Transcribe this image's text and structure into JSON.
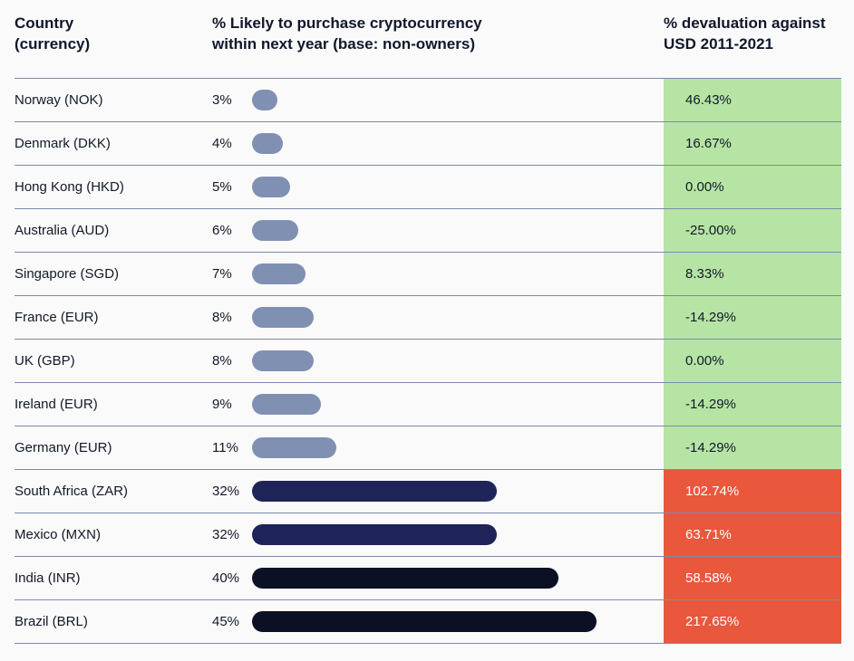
{
  "header": {
    "country": "Country\n(currency)",
    "likely": "% Likely to purchase cryptocurrency\nwithin next year (base: non-owners)",
    "devaluation": "% devaluation against\nUSD 2011-2021"
  },
  "colors": {
    "bar_light": "#8090b2",
    "bar_mid": "#1e2458",
    "bar_dark": "#0b1024",
    "deval_green": "#b6e4a5",
    "deval_red": "#e9573c",
    "divider": "#7c8bab"
  },
  "chart_data": {
    "type": "table",
    "columns": [
      "Country (currency)",
      "% Likely to purchase cryptocurrency within next year (base: non-owners)",
      "% devaluation against USD 2011-2021"
    ],
    "rows": [
      {
        "country": "Norway (NOK)",
        "likely_pct": 3,
        "likely_label": "3%",
        "devaluation": "46.43%",
        "highlight": "green",
        "bar": "light"
      },
      {
        "country": "Denmark (DKK)",
        "likely_pct": 4,
        "likely_label": "4%",
        "devaluation": "16.67%",
        "highlight": "green",
        "bar": "light"
      },
      {
        "country": "Hong Kong (HKD)",
        "likely_pct": 5,
        "likely_label": "5%",
        "devaluation": "0.00%",
        "highlight": "green",
        "bar": "light"
      },
      {
        "country": "Australia (AUD)",
        "likely_pct": 6,
        "likely_label": "6%",
        "devaluation": "-25.00%",
        "highlight": "green",
        "bar": "light"
      },
      {
        "country": "Singapore (SGD)",
        "likely_pct": 7,
        "likely_label": "7%",
        "devaluation": "8.33%",
        "highlight": "green",
        "bar": "light"
      },
      {
        "country": "France (EUR)",
        "likely_pct": 8,
        "likely_label": "8%",
        "devaluation": "-14.29%",
        "highlight": "green",
        "bar": "light"
      },
      {
        "country": "UK (GBP)",
        "likely_pct": 8,
        "likely_label": "8%",
        "devaluation": "0.00%",
        "highlight": "green",
        "bar": "light"
      },
      {
        "country": "Ireland (EUR)",
        "likely_pct": 9,
        "likely_label": "9%",
        "devaluation": "-14.29%",
        "highlight": "green",
        "bar": "light"
      },
      {
        "country": "Germany (EUR)",
        "likely_pct": 11,
        "likely_label": "11%",
        "devaluation": "-14.29%",
        "highlight": "green",
        "bar": "light"
      },
      {
        "country": "South Africa (ZAR)",
        "likely_pct": 32,
        "likely_label": "32%",
        "devaluation": "102.74%",
        "highlight": "red",
        "bar": "mid"
      },
      {
        "country": "Mexico (MXN)",
        "likely_pct": 32,
        "likely_label": "32%",
        "devaluation": "63.71%",
        "highlight": "red",
        "bar": "mid"
      },
      {
        "country": "India (INR)",
        "likely_pct": 40,
        "likely_label": "40%",
        "devaluation": "58.58%",
        "highlight": "red",
        "bar": "dark"
      },
      {
        "country": "Brazil (BRL)",
        "likely_pct": 45,
        "likely_label": "45%",
        "devaluation": "217.65%",
        "highlight": "red",
        "bar": "dark"
      }
    ]
  }
}
